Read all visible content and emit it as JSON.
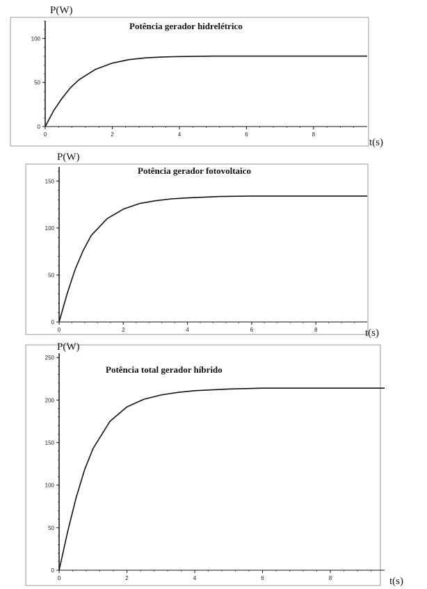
{
  "chart_data": [
    {
      "type": "line",
      "title": "Potência gerador hidrelétrico",
      "ylabel": "P(W)",
      "xlabel": "t(s)",
      "xlim": [
        0,
        9.6
      ],
      "ylim": [
        0,
        120
      ],
      "xticks": [
        0,
        2,
        4,
        6,
        8
      ],
      "yticks": [
        0,
        50,
        100
      ],
      "grid": false,
      "series": [
        {
          "x": [
            0,
            0.25,
            0.5,
            0.75,
            1,
            1.5,
            2,
            2.5,
            3,
            3.5,
            4,
            5,
            6,
            7,
            8,
            9,
            9.6
          ],
          "y": [
            0,
            18,
            32,
            44,
            53,
            65,
            72,
            76,
            78,
            79,
            79.5,
            80,
            80,
            80,
            80,
            80,
            80
          ]
        }
      ]
    },
    {
      "type": "line",
      "title": "Potência gerador fotovoltaico",
      "ylabel": "P(W)",
      "xlabel": "t(s)",
      "xlim": [
        0,
        9.6
      ],
      "ylim": [
        0,
        165
      ],
      "xticks": [
        0,
        2,
        4,
        6,
        8
      ],
      "yticks": [
        0,
        50,
        100,
        150
      ],
      "grid": false,
      "series": [
        {
          "x": [
            0,
            0.25,
            0.5,
            0.75,
            1,
            1.5,
            2,
            2.5,
            3,
            3.5,
            4,
            5,
            6,
            7,
            8,
            9,
            9.6
          ],
          "y": [
            0,
            30,
            56,
            76,
            92,
            110,
            120,
            126,
            129,
            131,
            132,
            133.5,
            134,
            134,
            134,
            134,
            134
          ]
        }
      ]
    },
    {
      "type": "line",
      "title": "Potência total gerador híbrido",
      "ylabel": "P(W)",
      "xlabel": "t(s)",
      "xlim": [
        0,
        9.6
      ],
      "ylim": [
        0,
        255
      ],
      "xticks": [
        0,
        2,
        4,
        6,
        8
      ],
      "yticks": [
        0,
        50,
        100,
        150,
        200,
        250
      ],
      "grid": false,
      "series": [
        {
          "x": [
            0,
            0.25,
            0.5,
            0.75,
            1,
            1.5,
            2,
            2.5,
            3,
            3.5,
            4,
            5,
            6,
            7,
            8,
            9,
            9.6
          ],
          "y": [
            0,
            45,
            85,
            118,
            143,
            175,
            192,
            201,
            206,
            209,
            211,
            213,
            214,
            214,
            214,
            214,
            214
          ]
        }
      ]
    }
  ]
}
